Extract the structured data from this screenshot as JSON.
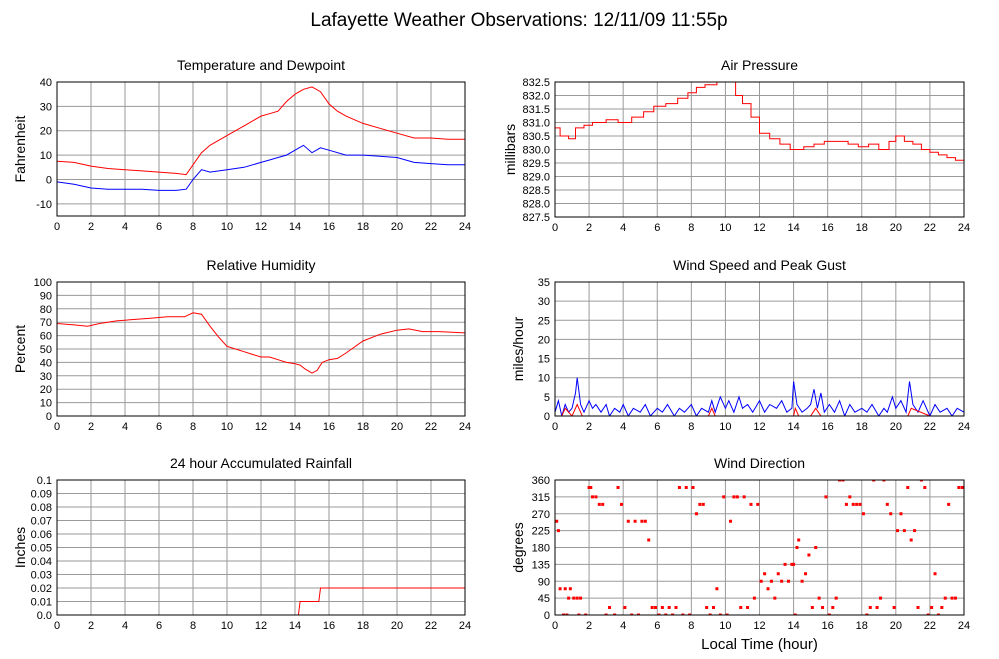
{
  "page": {
    "title": "Lafayette Weather Observations: 12/11/09 11:55p"
  },
  "chart_data": [
    {
      "id": "temp",
      "type": "line",
      "title": "Temperature and Dewpoint",
      "xlabel": "",
      "ylabel": "Fahrenheit",
      "xlim": [
        0,
        24
      ],
      "ylim": [
        -15,
        40
      ],
      "xticks": [
        0,
        2,
        4,
        6,
        8,
        10,
        12,
        14,
        16,
        18,
        20,
        22,
        24
      ],
      "yticks": [
        -10,
        0,
        10,
        20,
        30,
        40
      ],
      "grid": true,
      "series": [
        {
          "color": "#ff0000",
          "step": false,
          "x": [
            0,
            1,
            2,
            3,
            4,
            5,
            6,
            7,
            7.6,
            8,
            8.5,
            9,
            10,
            11,
            12,
            12.5,
            13,
            13.5,
            14,
            14.5,
            15,
            15.5,
            16,
            16.5,
            17,
            18,
            19,
            20,
            21,
            22,
            23,
            24
          ],
          "y": [
            7.5,
            7,
            5.5,
            4.5,
            4,
            3.5,
            3,
            2.5,
            2,
            6,
            11,
            14,
            18,
            22,
            26,
            27,
            28,
            32,
            35,
            37,
            38,
            36,
            31,
            28,
            26,
            23,
            21,
            19,
            17,
            17,
            16.5,
            16.5
          ]
        },
        {
          "color": "#0000ff",
          "step": false,
          "x": [
            0,
            1,
            2,
            3,
            4,
            5,
            6,
            7,
            7.6,
            8,
            8.5,
            9,
            10,
            11,
            12,
            12.5,
            13,
            13.5,
            14,
            14.5,
            15,
            15.5,
            16,
            17,
            18,
            19,
            20,
            21,
            22,
            23,
            24
          ],
          "y": [
            -1,
            -2,
            -3.5,
            -4,
            -4,
            -4,
            -4.5,
            -4.5,
            -4,
            0,
            4,
            3,
            4,
            5,
            7,
            8,
            9,
            10,
            12,
            14,
            11,
            13,
            12,
            10,
            10,
            9.5,
            9,
            7,
            6.5,
            6,
            6
          ]
        }
      ]
    },
    {
      "id": "pressure",
      "type": "line",
      "title": "Air Pressure",
      "xlabel": "",
      "ylabel": "millibars",
      "xlim": [
        0,
        24
      ],
      "ylim": [
        827.5,
        832.5
      ],
      "xticks": [
        0,
        2,
        4,
        6,
        8,
        10,
        12,
        14,
        16,
        18,
        20,
        22,
        24
      ],
      "yticks": [
        827.5,
        828.0,
        828.5,
        829.0,
        829.5,
        830.0,
        830.5,
        831.0,
        831.5,
        832.0,
        832.5
      ],
      "ytick_decimals": 1,
      "grid": true,
      "series": [
        {
          "color": "#ff0000",
          "step": true,
          "x": [
            0,
            0.3,
            0.8,
            1.2,
            1.7,
            2.2,
            3,
            3.7,
            4.5,
            5.2,
            5.8,
            6.5,
            7.2,
            7.8,
            8.3,
            8.8,
            9.5,
            10.2,
            10.6,
            11,
            11.5,
            12,
            12.6,
            13.2,
            13.8,
            14.6,
            15.2,
            15.8,
            16.6,
            17.2,
            17.8,
            18.4,
            19,
            19.6,
            20,
            20.5,
            21,
            21.5,
            22,
            22.5,
            23,
            23.5,
            24
          ],
          "y": [
            830.8,
            830.5,
            830.4,
            830.8,
            830.9,
            831.0,
            831.1,
            831.0,
            831.2,
            831.4,
            831.6,
            831.7,
            831.9,
            832.1,
            832.3,
            832.4,
            832.5,
            832.5,
            832.0,
            831.7,
            831.2,
            830.6,
            830.4,
            830.2,
            830.0,
            830.1,
            830.2,
            830.3,
            830.3,
            830.2,
            830.1,
            830.2,
            830.0,
            830.3,
            830.5,
            830.3,
            830.2,
            830.0,
            829.9,
            829.8,
            829.7,
            829.6,
            829.4
          ]
        }
      ]
    },
    {
      "id": "humidity",
      "type": "line",
      "title": "Relative Humidity",
      "xlabel": "",
      "ylabel": "Percent",
      "xlim": [
        0,
        24
      ],
      "ylim": [
        0,
        100
      ],
      "xticks": [
        0,
        2,
        4,
        6,
        8,
        10,
        12,
        14,
        16,
        18,
        20,
        22,
        24
      ],
      "yticks": [
        0,
        10,
        20,
        30,
        40,
        50,
        60,
        70,
        80,
        90,
        100
      ],
      "grid": true,
      "series": [
        {
          "color": "#ff0000",
          "step": false,
          "x": [
            0,
            1,
            1.8,
            2.5,
            3.5,
            4.5,
            5.5,
            6.5,
            7.5,
            8,
            8.5,
            9,
            9.5,
            10,
            10.5,
            11,
            11.5,
            12,
            12.5,
            13,
            13.5,
            14,
            14.3,
            14.6,
            15,
            15.3,
            15.6,
            16,
            16.5,
            17,
            18,
            19,
            20,
            20.7,
            21.5,
            22.5,
            24
          ],
          "y": [
            69,
            68,
            67,
            69,
            71,
            72,
            73,
            74,
            74,
            77,
            76,
            67,
            59,
            52,
            50,
            48,
            46,
            44,
            44,
            42,
            40,
            39,
            38,
            35,
            32,
            34,
            40,
            42,
            43,
            47,
            56,
            61,
            64,
            65,
            63,
            63,
            62
          ]
        }
      ]
    },
    {
      "id": "wind",
      "type": "line",
      "title": "Wind Speed and Peak Gust",
      "xlabel": "",
      "ylabel": "miles/hour",
      "xlim": [
        0,
        24
      ],
      "ylim": [
        0,
        35
      ],
      "xticks": [
        0,
        2,
        4,
        6,
        8,
        10,
        12,
        14,
        16,
        18,
        20,
        22,
        24
      ],
      "yticks": [
        0,
        5,
        10,
        15,
        20,
        25,
        30,
        35
      ],
      "grid": true,
      "series": [
        {
          "color": "#0000ff",
          "step": false,
          "x": [
            0,
            0.2,
            0.4,
            0.6,
            0.8,
            1,
            1.2,
            1.3,
            1.5,
            1.7,
            2,
            2.2,
            2.4,
            2.7,
            3,
            3.2,
            3.5,
            3.8,
            4,
            4.3,
            4.6,
            5,
            5.3,
            5.6,
            6,
            6.3,
            6.6,
            7,
            7.3,
            7.6,
            8,
            8.3,
            8.6,
            9,
            9.2,
            9.4,
            9.7,
            10,
            10.2,
            10.5,
            10.8,
            11,
            11.3,
            11.6,
            12,
            12.3,
            12.6,
            13,
            13.3,
            13.6,
            13.9,
            14,
            14.2,
            14.5,
            14.8,
            15,
            15.2,
            15.4,
            15.6,
            15.8,
            16.1,
            16.4,
            16.7,
            17,
            17.3,
            17.6,
            18,
            18.3,
            18.6,
            19,
            19.3,
            19.5,
            19.8,
            20,
            20.3,
            20.6,
            20.8,
            21,
            21.3,
            21.6,
            22,
            22.3,
            22.6,
            23,
            23.3,
            23.6,
            24
          ],
          "y": [
            1,
            4,
            0,
            3,
            1,
            2,
            6,
            10,
            3,
            1,
            4,
            2,
            3,
            1,
            3,
            0,
            2,
            1,
            3,
            0,
            2,
            1,
            3,
            0,
            2,
            1,
            3,
            0,
            2,
            1,
            3,
            0,
            2,
            1,
            4,
            1,
            5,
            2,
            4,
            1,
            5,
            2,
            3,
            1,
            4,
            1,
            3,
            2,
            4,
            1,
            2,
            9,
            3,
            1,
            2,
            3,
            7,
            2,
            6,
            1,
            3,
            1,
            4,
            0,
            3,
            1,
            2,
            1,
            3,
            0,
            2,
            1,
            5,
            2,
            4,
            1,
            9,
            3,
            1,
            4,
            0,
            3,
            1,
            2,
            0,
            2,
            1
          ]
        },
        {
          "color": "#ff0000",
          "step": false,
          "x": [
            0,
            0.4,
            0.6,
            1,
            1.3,
            1.6,
            2,
            4,
            6,
            8,
            9,
            9.2,
            9.4,
            10,
            11,
            12,
            14,
            14.1,
            14.3,
            15,
            15.3,
            15.6,
            16,
            18,
            20,
            20.7,
            20.9,
            22,
            24
          ],
          "y": [
            0,
            0,
            2,
            0,
            3,
            0,
            0,
            0,
            0,
            0,
            0,
            2,
            0,
            0,
            0,
            0,
            0,
            2,
            0,
            0,
            2,
            0,
            0,
            0,
            0,
            0,
            2,
            0,
            0
          ]
        }
      ]
    },
    {
      "id": "rain",
      "type": "line",
      "title": "24 hour Accumulated Rainfall",
      "xlabel": "",
      "ylabel": "Inches",
      "xlim": [
        0,
        24
      ],
      "ylim": [
        0,
        0.1
      ],
      "xticks": [
        0,
        2,
        4,
        6,
        8,
        10,
        12,
        14,
        16,
        18,
        20,
        22,
        24
      ],
      "yticks": [
        0.0,
        0.01,
        0.02,
        0.03,
        0.04,
        0.05,
        0.06,
        0.07,
        0.08,
        0.09,
        0.1
      ],
      "ytick_labels": [
        "0.0",
        "0.01",
        "0.02",
        "0.03",
        "0.04",
        "0.05",
        "0.06",
        "0.07",
        "0.08",
        "0.09",
        "0.1"
      ],
      "grid": true,
      "series": [
        {
          "color": "#ff0000",
          "step": false,
          "x": [
            0,
            14.2,
            14.3,
            15.4,
            15.5,
            24
          ],
          "y": [
            0,
            0,
            0.01,
            0.01,
            0.02,
            0.02
          ]
        }
      ]
    },
    {
      "id": "direction",
      "type": "scatter",
      "title": "Wind Direction",
      "xlabel": "Local Time (hour)",
      "ylabel": "degrees",
      "xlim": [
        0,
        24
      ],
      "ylim": [
        0,
        360
      ],
      "xticks": [
        0,
        2,
        4,
        6,
        8,
        10,
        12,
        14,
        16,
        18,
        20,
        22,
        24
      ],
      "yticks": [
        0,
        45,
        90,
        135,
        180,
        225,
        270,
        315,
        360
      ],
      "grid": true,
      "series": [
        {
          "color": "#ff0000",
          "x": [
            0.1,
            0.2,
            0.3,
            0.5,
            0.6,
            0.7,
            0.8,
            0.9,
            1.1,
            1.3,
            1.4,
            1.5,
            1.8,
            2.0,
            2.1,
            2.2,
            2.4,
            2.6,
            2.8,
            3.0,
            3.2,
            3.5,
            3.7,
            3.9,
            4.1,
            4.3,
            4.5,
            4.7,
            4.9,
            5.1,
            5.3,
            5.5,
            5.7,
            5.9,
            6.1,
            6.3,
            6.5,
            6.7,
            6.9,
            7.1,
            7.3,
            7.5,
            7.7,
            7.9,
            8.1,
            8.3,
            8.5,
            8.7,
            8.9,
            9.1,
            9.3,
            9.5,
            9.7,
            9.9,
            10.1,
            10.3,
            10.5,
            10.7,
            10.9,
            11.1,
            11.3,
            11.5,
            11.7,
            11.9,
            12.1,
            12.3,
            12.5,
            12.7,
            12.9,
            13.1,
            13.3,
            13.5,
            13.7,
            13.9,
            14.0,
            14.1,
            14.2,
            14.3,
            14.5,
            14.7,
            14.9,
            15.1,
            15.3,
            15.5,
            15.7,
            15.9,
            16.1,
            16.3,
            16.5,
            16.7,
            16.9,
            17.1,
            17.3,
            17.5,
            17.7,
            17.9,
            18.1,
            18.3,
            18.5,
            18.7,
            18.9,
            19.1,
            19.3,
            19.5,
            19.7,
            19.9,
            20.1,
            20.3,
            20.5,
            20.7,
            20.9,
            21.1,
            21.3,
            21.5,
            21.7,
            21.9,
            22.1,
            22.3,
            22.5,
            22.7,
            22.9,
            23.1,
            23.3,
            23.5,
            23.7,
            23.9
          ],
          "y": [
            250,
            225,
            70,
            0,
            70,
            0,
            45,
            70,
            45,
            45,
            0,
            45,
            0,
            340,
            340,
            315,
            315,
            295,
            295,
            0,
            20,
            0,
            340,
            295,
            20,
            250,
            0,
            250,
            0,
            250,
            250,
            200,
            20,
            20,
            0,
            20,
            0,
            20,
            0,
            20,
            340,
            0,
            340,
            0,
            340,
            270,
            295,
            295,
            20,
            0,
            20,
            70,
            0,
            315,
            0,
            250,
            315,
            315,
            20,
            315,
            20,
            295,
            45,
            295,
            90,
            110,
            70,
            90,
            45,
            110,
            90,
            135,
            90,
            135,
            135,
            0,
            180,
            200,
            90,
            110,
            160,
            20,
            180,
            45,
            20,
            315,
            0,
            20,
            45,
            360,
            360,
            295,
            315,
            295,
            295,
            295,
            270,
            0,
            20,
            360,
            20,
            45,
            360,
            295,
            270,
            20,
            225,
            270,
            225,
            340,
            200,
            225,
            20,
            360,
            340,
            0,
            20,
            110,
            0,
            20,
            45,
            295,
            45,
            45,
            340,
            340
          ]
        }
      ]
    }
  ]
}
